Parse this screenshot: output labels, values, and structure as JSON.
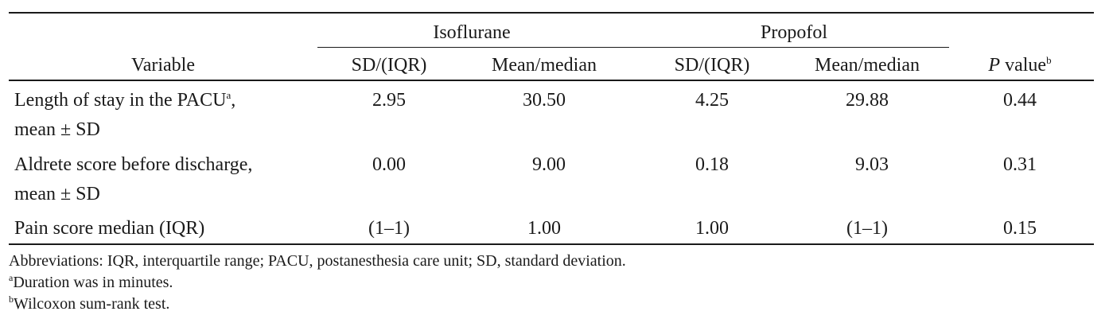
{
  "headers": {
    "variable": "Variable",
    "groups": [
      "Isoflurane",
      "Propofol"
    ],
    "sd_iqr": "SD/(IQR)",
    "mean_median": "Mean/median",
    "p_value_p": "P",
    "p_value_label": " value",
    "p_value_sup": "b"
  },
  "rows": [
    {
      "label_line1": "Length of stay in the PACU",
      "label_sup": "a",
      "label_line1_suffix": ",",
      "label_line2": "mean ± SD",
      "iso_sd": "2.95",
      "iso_mean": "30.50",
      "pro_sd": "4.25",
      "pro_mean": "29.88",
      "p": "0.44"
    },
    {
      "label_line1": "Aldrete score before discharge,",
      "label_line2": "mean ± SD",
      "iso_sd": "0.00",
      "iso_mean": "9.00",
      "pro_sd": "0.18",
      "pro_mean": "9.03",
      "p": "0.31"
    },
    {
      "label_line1": "Pain score median (IQR)",
      "iso_sd": "(1–1)",
      "iso_mean": "1.00",
      "pro_sd": "1.00",
      "pro_mean": "(1–1)",
      "p": "0.15"
    }
  ],
  "footnotes": {
    "abbreviations": "Abbreviations: IQR, interquartile range; PACU, postanesthesia care unit; SD, standard deviation.",
    "a_mark": "a",
    "a_text": "Duration was in minutes.",
    "b_mark": "b",
    "b_text": "Wilcoxon sum-rank test."
  }
}
